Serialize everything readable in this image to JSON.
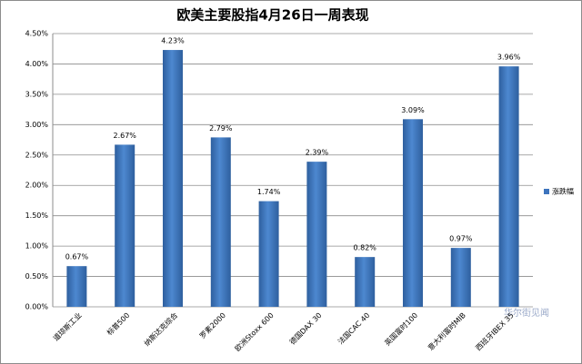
{
  "chart_data": {
    "type": "bar",
    "title": "欧美主要股指4月26日一周表现",
    "categories": [
      "道琼斯工业",
      "标普500",
      "纳斯达克综合",
      "罗素2000",
      "欧洲Stoxx 600",
      "德国DAX 30",
      "法国CAC 40",
      "英国富时100",
      "意大利富时MIB",
      "西班牙IBEX 35"
    ],
    "series": [
      {
        "name": "涨跌幅",
        "color": "#3d74bd",
        "values": [
          0.67,
          2.67,
          4.23,
          2.79,
          1.74,
          2.39,
          0.82,
          3.09,
          0.97,
          3.96
        ],
        "value_labels": [
          "0.67%",
          "2.67%",
          "4.23%",
          "2.79%",
          "1.74%",
          "2.39%",
          "0.82%",
          "3.09%",
          "0.97%",
          "3.96%"
        ]
      }
    ],
    "ylim": [
      0,
      4.5
    ],
    "yticks": [
      {
        "value": 0,
        "label": "0.00%"
      },
      {
        "value": 0.5,
        "label": "0.50%"
      },
      {
        "value": 1,
        "label": "1.00%"
      },
      {
        "value": 1.5,
        "label": "1.50%"
      },
      {
        "value": 2,
        "label": "2.00%"
      },
      {
        "value": 2.5,
        "label": "2.50%"
      },
      {
        "value": 3,
        "label": "3.00%"
      },
      {
        "value": 3.5,
        "label": "3.50%"
      },
      {
        "value": 4,
        "label": "4.00%"
      },
      {
        "value": 4.5,
        "label": "4.50%"
      }
    ],
    "grid": true,
    "legend": "right",
    "watermark": "华尔街见闻"
  }
}
